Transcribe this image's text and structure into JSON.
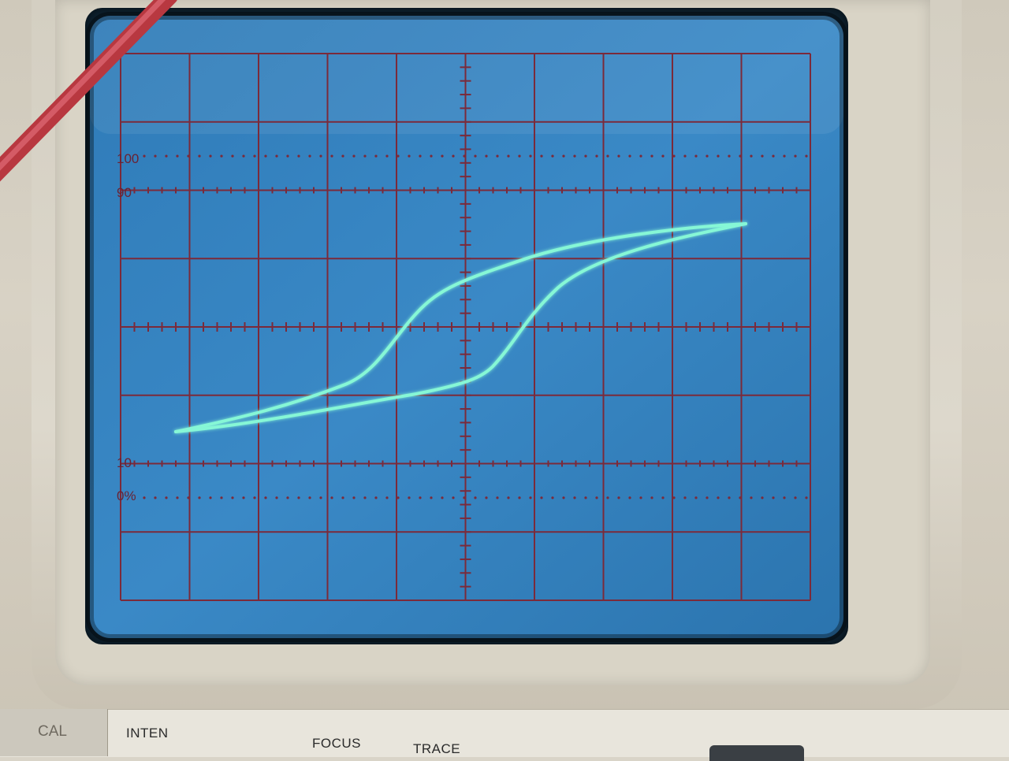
{
  "device": {
    "grid_labels": {
      "top_100": "100",
      "top_90": "90",
      "bottom_10": "10",
      "bottom_0": "0%"
    },
    "panel": {
      "cal": "CAL",
      "inten": "INTEN",
      "focus": "FOCUS",
      "trace": "TRACE"
    }
  },
  "colors": {
    "screen_blue": "#3a86c4",
    "grid_lines": "#7b2a3a",
    "trace": "#7ff5d0",
    "probe_wire": "#c94a52"
  },
  "trace_description": "hysteresis loop"
}
